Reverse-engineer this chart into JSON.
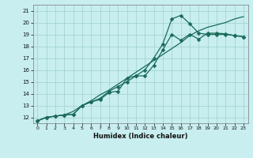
{
  "title": "",
  "xlabel": "Humidex (Indice chaleur)",
  "xlim_min": -0.5,
  "xlim_max": 23.5,
  "ylim_min": 11.5,
  "ylim_max": 21.5,
  "xticks": [
    0,
    1,
    2,
    3,
    4,
    5,
    6,
    7,
    8,
    9,
    10,
    11,
    12,
    13,
    14,
    15,
    16,
    17,
    18,
    19,
    20,
    21,
    22,
    23
  ],
  "yticks": [
    12,
    13,
    14,
    15,
    16,
    17,
    18,
    19,
    20,
    21
  ],
  "bg_color": "#c8eef0",
  "grid_color": "#9ecfce",
  "line_color": "#1a6b5a",
  "wavy_x": [
    0,
    1,
    2,
    3,
    4,
    5,
    6,
    7,
    8,
    9,
    10,
    11,
    12,
    13,
    14,
    15,
    16,
    17,
    18,
    19,
    20,
    21,
    22,
    23
  ],
  "wavy_y": [
    11.7,
    12.0,
    12.1,
    12.2,
    12.25,
    13.0,
    13.3,
    13.5,
    14.1,
    14.2,
    15.3,
    15.5,
    15.5,
    16.4,
    17.7,
    19.0,
    18.5,
    19.0,
    18.6,
    19.1,
    19.1,
    19.05,
    18.9,
    18.8
  ],
  "upper_x": [
    0,
    1,
    2,
    3,
    4,
    5,
    6,
    7,
    8,
    9,
    10,
    11,
    12,
    13,
    14,
    15,
    16,
    17,
    18,
    19,
    20,
    21,
    22,
    23
  ],
  "upper_y": [
    11.7,
    12.0,
    12.1,
    12.2,
    12.5,
    13.0,
    13.4,
    13.9,
    14.3,
    14.8,
    15.3,
    15.8,
    16.3,
    16.8,
    17.3,
    17.8,
    18.3,
    18.9,
    19.3,
    19.6,
    19.8,
    20.0,
    20.3,
    20.5
  ],
  "peak_x": [
    0,
    1,
    2,
    3,
    4,
    5,
    6,
    7,
    8,
    9,
    10,
    11,
    12,
    13,
    14,
    15,
    16,
    17,
    18,
    19,
    20,
    21,
    22,
    23
  ],
  "peak_y": [
    11.7,
    12.0,
    12.1,
    12.2,
    12.25,
    13.0,
    13.3,
    13.6,
    14.2,
    14.6,
    15.0,
    15.5,
    16.0,
    17.0,
    18.2,
    20.3,
    20.6,
    19.9,
    19.1,
    19.0,
    19.0,
    19.0,
    18.9,
    18.8
  ]
}
